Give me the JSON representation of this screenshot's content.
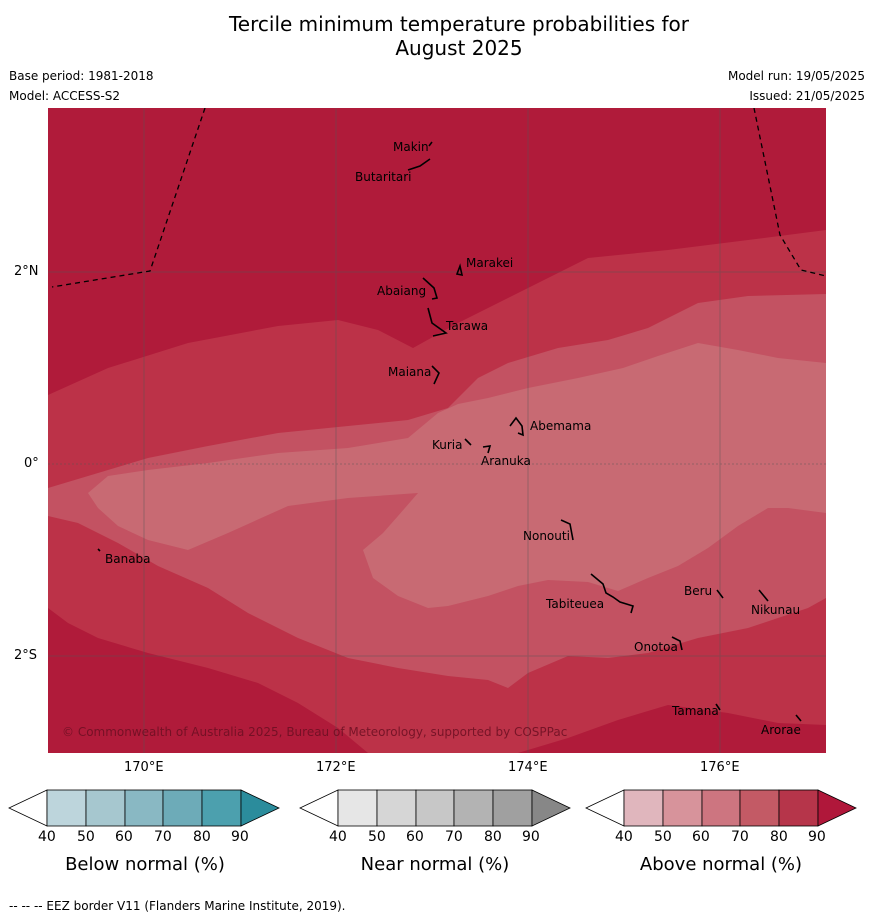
{
  "title_line1": "Tercile minimum temperature probabilities for",
  "title_line2": "August 2025",
  "meta": {
    "base_period": "Base period: 1981-2018",
    "model": "Model: ACCESS-S2",
    "model_run": "Model run: 19/05/2025",
    "issued": "Issued: 21/05/2025"
  },
  "map": {
    "lon_ticks": [
      "170°E",
      "172°E",
      "174°E",
      "176°E"
    ],
    "lat_ticks": [
      "2°N",
      "0°",
      "2°S"
    ],
    "copyright": "© Commonwealth of Australia 2025, Bureau of Meteorology, supported by COSPPac",
    "islands": [
      "Makin",
      "Butaritari",
      "Marakei",
      "Abaiang",
      "Tarawa",
      "Maiana",
      "Abemama",
      "Kuria",
      "Aranuka",
      "Nonouti",
      "Banaba",
      "Tabiteuea",
      "Beru",
      "Nikunau",
      "Onotoa",
      "Tamana",
      "Arorae"
    ],
    "colors": {
      "c90": "#b01b3a",
      "c80": "#bc3248",
      "c70": "#c35262",
      "c60": "#c86a73"
    }
  },
  "colorbars": [
    {
      "title": "Below normal (%)",
      "ticks": [
        "40",
        "50",
        "60",
        "70",
        "80",
        "90"
      ],
      "colors": [
        "#bdd5dc",
        "#a6c7cf",
        "#89b8c3",
        "#6dabb8",
        "#4ca0ae",
        "#2b8c9c"
      ]
    },
    {
      "title": "Near normal (%)",
      "ticks": [
        "40",
        "50",
        "60",
        "70",
        "80",
        "90"
      ],
      "colors": [
        "#e6e6e6",
        "#d6d6d6",
        "#c7c7c7",
        "#b3b3b3",
        "#a0a0a0",
        "#878787"
      ]
    },
    {
      "title": "Above normal (%)",
      "ticks": [
        "40",
        "50",
        "60",
        "70",
        "80",
        "90"
      ],
      "colors": [
        "#e0b6bd",
        "#d7939b",
        "#cd7580",
        "#c35a65",
        "#b6354a",
        "#b0173a"
      ]
    }
  ],
  "footnote": "--  --  -- EEZ border V11 (Flanders Marine Institute, 2019)."
}
